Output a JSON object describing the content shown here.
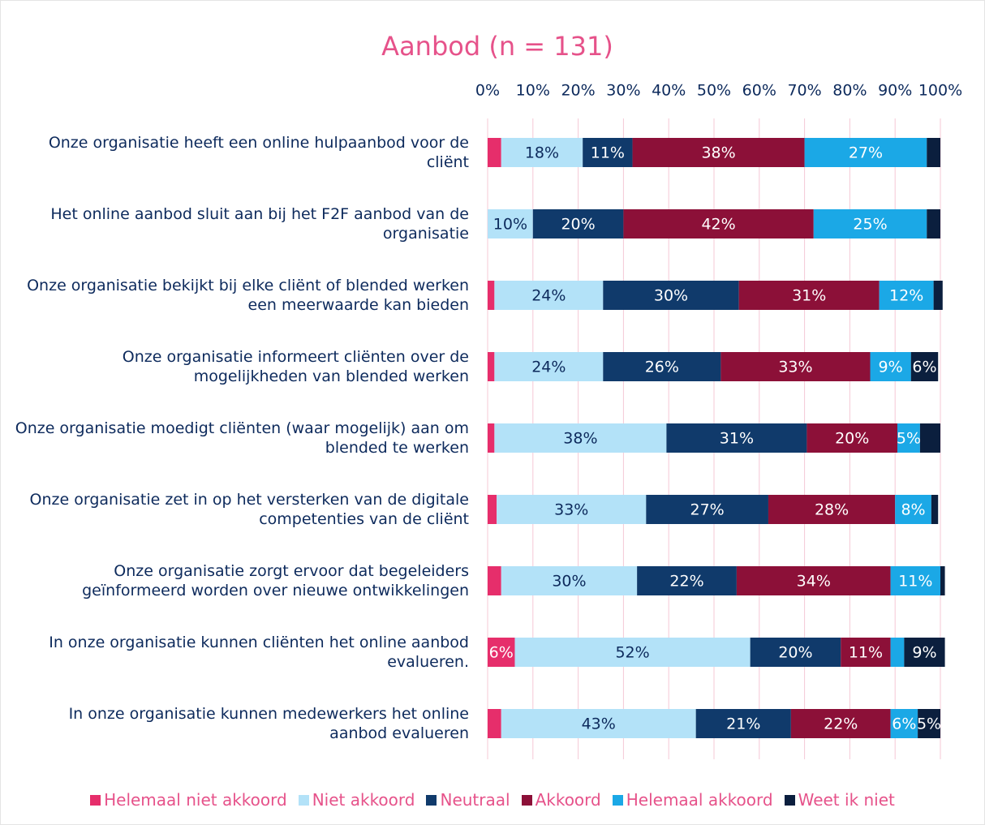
{
  "chart_data": {
    "type": "stacked_barh",
    "title": "Aanbod (n = 131)",
    "categories": [
      "Onze organisatie heeft een online hulpaanbod voor de cliënt",
      "Het online aanbod sluit aan bij het F2F aanbod van de organisatie",
      "Onze organisatie bekijkt bij elke cliënt of blended werken een meerwaarde kan bieden",
      "Onze organisatie informeert cliënten over de mogelijkheden van blended werken",
      "Onze organisatie moedigt cliënten (waar mogelijk) aan om blended te werken",
      "Onze organisatie zet in op het versterken van de digitale competenties van de cliënt",
      "Onze organisatie zorgt ervoor dat begeleiders geïnformeerd worden over nieuwe ontwikkelingen",
      "In onze organisatie kunnen cliënten het online aanbod evalueren.",
      "In onze organisatie kunnen medewerkers het online aanbod evalueren"
    ],
    "series": [
      {
        "name": "Helemaal niet akkoord",
        "color": "#e62e6b",
        "text_color": "#ffffff",
        "values": [
          3,
          0,
          1.5,
          1.5,
          1.5,
          2,
          3,
          6,
          3
        ],
        "value_labels": [
          null,
          null,
          null,
          null,
          null,
          null,
          null,
          "6%",
          null
        ]
      },
      {
        "name": "Niet akkoord",
        "color": "#b3e2f8",
        "text_color": "#0d2a5c",
        "values": [
          18,
          10,
          24,
          24,
          38,
          33,
          30,
          52,
          43
        ],
        "value_labels": [
          "18%",
          "10%",
          "24%",
          "24%",
          "38%",
          "33%",
          "30%",
          "52%",
          "43%"
        ]
      },
      {
        "name": "Neutraal",
        "color": "#103a6b",
        "text_color": "#ffffff",
        "values": [
          11,
          20,
          30,
          26,
          31,
          27,
          22,
          20,
          21
        ],
        "value_labels": [
          "11%",
          "20%",
          "30%",
          "26%",
          "31%",
          "27%",
          "22%",
          "20%",
          "21%"
        ]
      },
      {
        "name": "Akkoord",
        "color": "#8c1038",
        "text_color": "#ffffff",
        "values": [
          38,
          42,
          31,
          33,
          20,
          28,
          34,
          11,
          22
        ],
        "value_labels": [
          "38%",
          "42%",
          "31%",
          "33%",
          "20%",
          "28%",
          "34%",
          "11%",
          "22%"
        ]
      },
      {
        "name": "Helemaal akkoord",
        "color": "#1ba8e6",
        "text_color": "#ffffff",
        "values": [
          27,
          25,
          12,
          9,
          5,
          8,
          11,
          3,
          6
        ],
        "value_labels": [
          "27%",
          "25%",
          "12%",
          "9%",
          "5%",
          "8%",
          "11%",
          null,
          "6%"
        ]
      },
      {
        "name": "Weet ik niet",
        "color": "#0b1f3e",
        "text_color": "#ffffff",
        "values": [
          3,
          3,
          2,
          6,
          4.5,
          1.5,
          1,
          9,
          5
        ],
        "value_labels": [
          null,
          null,
          null,
          "6%",
          null,
          null,
          null,
          "9%",
          "5%"
        ]
      }
    ],
    "xlim": [
      0,
      100
    ],
    "xticks": [
      {
        "value": 0,
        "label": "0%"
      },
      {
        "value": 10,
        "label": "10%"
      },
      {
        "value": 20,
        "label": "20%"
      },
      {
        "value": 30,
        "label": "30%"
      },
      {
        "value": 40,
        "label": "40%"
      },
      {
        "value": 50,
        "label": "50%"
      },
      {
        "value": 60,
        "label": "60%"
      },
      {
        "value": 70,
        "label": "70%"
      },
      {
        "value": 80,
        "label": "80%"
      },
      {
        "value": 90,
        "label": "90%"
      },
      {
        "value": 100,
        "label": "100%"
      }
    ],
    "grid": true
  }
}
